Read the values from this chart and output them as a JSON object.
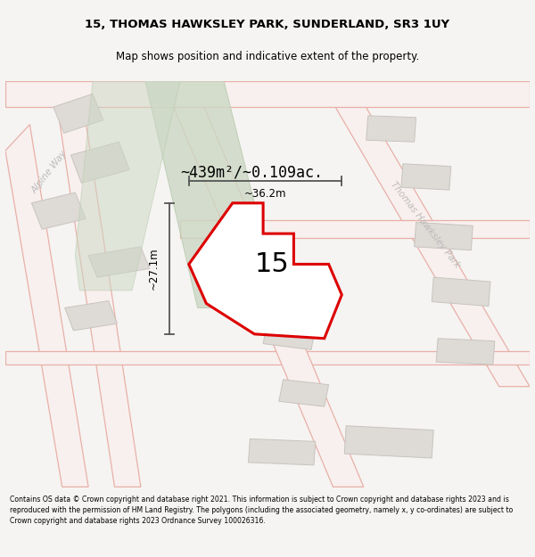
{
  "title_line1": "15, THOMAS HAWKSLEY PARK, SUNDERLAND, SR3 1UY",
  "title_line2": "Map shows position and indicative extent of the property.",
  "footer_text": "Contains OS data © Crown copyright and database right 2021. This information is subject to Crown copyright and database rights 2023 and is reproduced with the permission of HM Land Registry. The polygons (including the associated geometry, namely x, y co-ordinates) are subject to Crown copyright and database rights 2023 Ordnance Survey 100026316.",
  "bg_color": "#f5f4f2",
  "map_bg": "#ffffff",
  "road_edge_color": "#e8b0a8",
  "road_fill_color": "#f8f0ee",
  "green_fill": "#ccd8c4",
  "green_edge": "#b8cbb0",
  "prop_stroke": "#dd0000",
  "prop_fill": "#ffffff",
  "bld_fill": "#dedad6",
  "bld_edge": "#c8c4be",
  "label_15": "15",
  "area_label": "~439m²/~0.109ac.",
  "dim_w_label": "~36.2m",
  "dim_h_label": "~27.1m",
  "road_label_left": "Alpine Way",
  "road_label_right": "Thomas Hawksley Park",
  "dim_color": "#555555",
  "road_label_color": "#bbbbbb",
  "title_fontsize": 9.5,
  "subtitle_fontsize": 8.5,
  "footer_fontsize": 5.6
}
